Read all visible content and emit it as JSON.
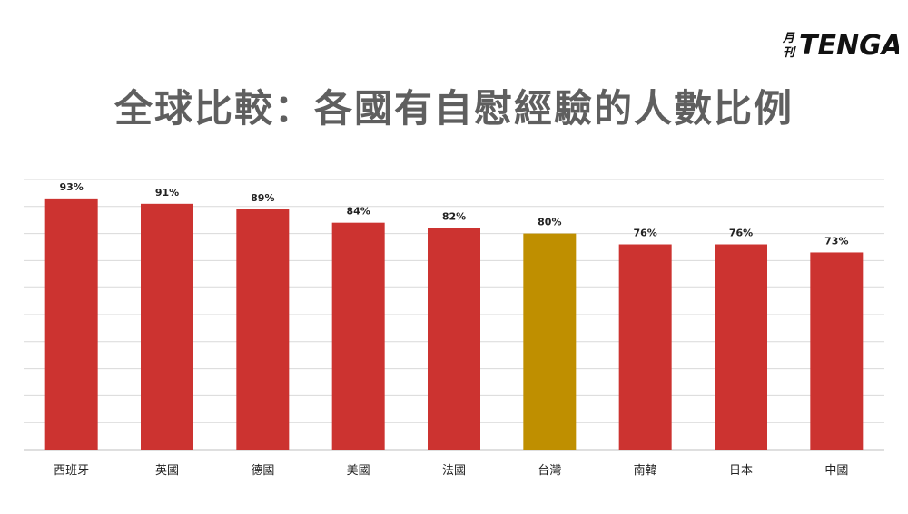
{
  "logo": {
    "prefix": "月刊",
    "name": "TENGA"
  },
  "chart_data": {
    "type": "bar",
    "title": "全球比較：各國有自慰經驗的人數比例",
    "categories": [
      "西班牙",
      "英國",
      "德國",
      "美國",
      "法國",
      "台灣",
      "南韓",
      "日本",
      "中國"
    ],
    "values": [
      93,
      91,
      89,
      84,
      82,
      80,
      76,
      76,
      73
    ],
    "data_labels": [
      "93%",
      "91%",
      "89%",
      "84%",
      "82%",
      "80%",
      "76%",
      "76%",
      "73%"
    ],
    "ylim": [
      0,
      100
    ],
    "grid": true,
    "legend": "none",
    "highlight_category": "台灣",
    "colors": {
      "bar": "#cc3330",
      "highlight": "#bf8f00",
      "grid": "#d9d9d9",
      "axis": "#bfbfbf",
      "title": "#5f5f5f"
    }
  }
}
